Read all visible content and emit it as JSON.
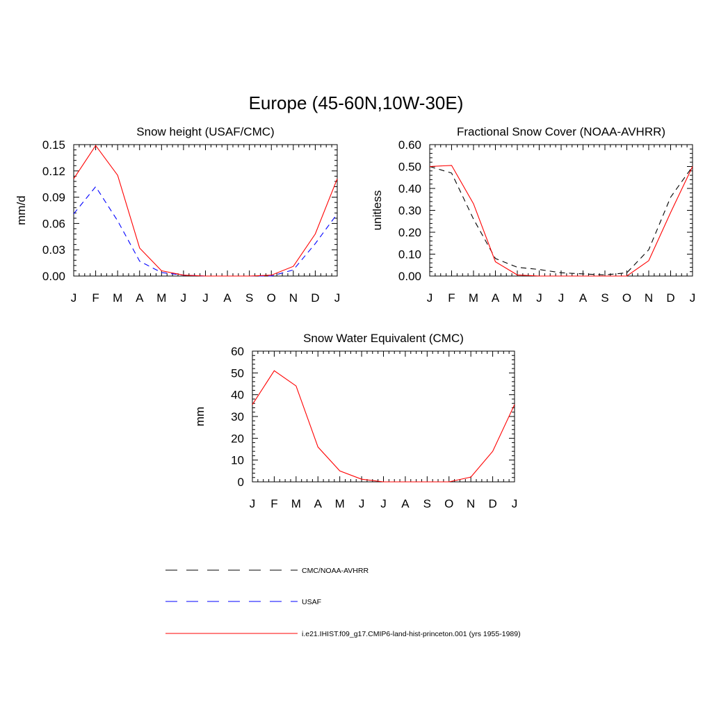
{
  "figure_title": "Europe (45-60N,10W-30E)",
  "chart_data": [
    {
      "type": "line",
      "title": "Snow height (USAF/CMC)",
      "ylabel": "mm/d",
      "xlabel": "",
      "categories": [
        "J",
        "F",
        "M",
        "A",
        "M",
        "J",
        "J",
        "A",
        "S",
        "O",
        "N",
        "D",
        "J"
      ],
      "ylim": [
        0,
        0.15
      ],
      "yticks": [
        "0.00",
        "0.03",
        "0.06",
        "0.09",
        "0.12",
        "0.15"
      ],
      "series": [
        {
          "name": "CMC/NOAA-AVHRR",
          "color": "#000000",
          "dash": "dashed",
          "values": [
            0,
            0,
            0,
            0,
            0,
            0,
            0,
            0,
            0,
            0,
            0,
            0,
            0
          ]
        },
        {
          "name": "USAF",
          "color": "#0000ff",
          "dash": "dashed",
          "values": [
            0.071,
            0.102,
            0.063,
            0.017,
            0.004,
            0.001,
            0,
            0,
            0,
            0,
            0.007,
            0.037,
            0.071
          ]
        },
        {
          "name": "i.e21.IHIST.f09_g17.CMIP6-land-hist-princeton.001 (yrs 1955-1989)",
          "color": "#ff0000",
          "dash": "solid",
          "values": [
            0.111,
            0.149,
            0.115,
            0.032,
            0.006,
            0.001,
            0,
            0,
            0,
            0.001,
            0.011,
            0.048,
            0.111
          ]
        }
      ]
    },
    {
      "type": "line",
      "title": "Fractional Snow Cover (NOAA-AVHRR)",
      "ylabel": "unitless",
      "xlabel": "",
      "categories": [
        "J",
        "F",
        "M",
        "A",
        "M",
        "J",
        "J",
        "A",
        "S",
        "O",
        "N",
        "D",
        "J"
      ],
      "ylim": [
        0,
        0.6
      ],
      "yticks": [
        "0.00",
        "0.10",
        "0.20",
        "0.30",
        "0.40",
        "0.50",
        "0.60"
      ],
      "series": [
        {
          "name": "CMC/NOAA-AVHRR",
          "color": "#000000",
          "dash": "dashed",
          "values": [
            0.5,
            0.47,
            0.26,
            0.08,
            0.04,
            0.03,
            0.015,
            0.01,
            0.005,
            0.015,
            0.12,
            0.36,
            0.5
          ]
        },
        {
          "name": "i.e21.IHIST.f09_g17.CMIP6-land-hist-princeton.001 (yrs 1955-1989)",
          "color": "#ff0000",
          "dash": "solid",
          "values": [
            0.5,
            0.505,
            0.33,
            0.065,
            0.005,
            0,
            0,
            0,
            0,
            0,
            0.07,
            0.29,
            0.5
          ]
        }
      ]
    },
    {
      "type": "line",
      "title": "Snow Water Equivalent (CMC)",
      "ylabel": "mm",
      "xlabel": "",
      "categories": [
        "J",
        "F",
        "M",
        "A",
        "M",
        "J",
        "J",
        "A",
        "S",
        "O",
        "N",
        "D",
        "J"
      ],
      "ylim": [
        0,
        60
      ],
      "yticks": [
        "0",
        "10",
        "20",
        "30",
        "40",
        "50",
        "60"
      ],
      "series": [
        {
          "name": "CMC/NOAA-AVHRR",
          "color": "#000000",
          "dash": "dashed",
          "values": [
            0,
            0,
            0,
            0,
            0,
            0,
            0,
            0,
            0,
            0,
            0,
            0,
            0
          ]
        },
        {
          "name": "i.e21.IHIST.f09_g17.CMIP6-land-hist-princeton.001 (yrs 1955-1989)",
          "color": "#ff0000",
          "dash": "solid",
          "values": [
            35.5,
            51,
            44,
            16,
            5,
            1.2,
            0,
            0,
            0,
            0,
            2.2,
            14,
            35.5
          ]
        }
      ]
    }
  ],
  "legend": [
    {
      "label": "CMC/NOAA-AVHRR",
      "color": "#000000",
      "dash": "dashed"
    },
    {
      "label": "USAF",
      "color": "#0000ff",
      "dash": "dashed"
    },
    {
      "label": "i.e21.IHIST.f09_g17.CMIP6-land-hist-princeton.001 (yrs 1955-1989)",
      "color": "#ff0000",
      "dash": "solid"
    }
  ]
}
